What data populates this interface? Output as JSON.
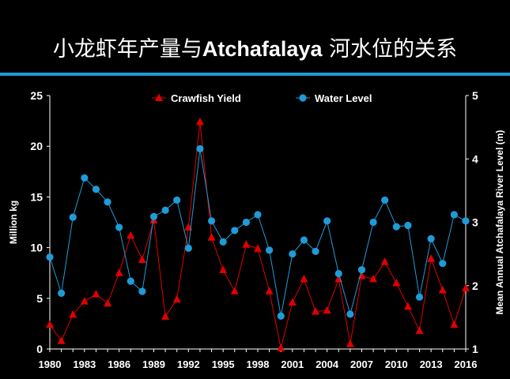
{
  "slide": {
    "title_cn_1": "小龙虾年产量与",
    "title_en": "Atchafalaya",
    "title_cn_2": " 河水位的关系"
  },
  "colors": {
    "background": "#000000",
    "accent_rule": "#1f9bd7",
    "crawfish": "#e00000",
    "water": "#1f9bd7"
  },
  "chart_data": {
    "type": "line",
    "x": [
      1980,
      1981,
      1982,
      1983,
      1984,
      1985,
      1986,
      1987,
      1988,
      1989,
      1990,
      1991,
      1992,
      1993,
      1994,
      1995,
      1996,
      1997,
      1998,
      1999,
      2000,
      2001,
      2002,
      2003,
      2004,
      2005,
      2006,
      2007,
      2008,
      2009,
      2010,
      2011,
      2012,
      2013,
      2014,
      2015,
      2016
    ],
    "x_ticks": [
      "1980",
      "1983",
      "1986",
      "1989",
      "1992",
      "1995",
      "1998",
      "2001",
      "2004",
      "2007",
      "2010",
      "2013",
      "2016"
    ],
    "xlim": [
      1980,
      2016
    ],
    "ylabel": "Million kg",
    "ylim": [
      0,
      25
    ],
    "y_ticks": [
      "0",
      "5",
      "10",
      "15",
      "20",
      "25"
    ],
    "y2label": "Mean Annual Atchafalaya River Level (m)",
    "y2lim": [
      1,
      5
    ],
    "y2_ticks": [
      "1",
      "2",
      "3",
      "4",
      "5"
    ],
    "legend_position": "top",
    "series": [
      {
        "name": "Crawfish Yield",
        "axis": "left",
        "marker": "triangle",
        "color": "#e00000",
        "values": [
          2.4,
          0.8,
          3.4,
          4.7,
          5.4,
          4.5,
          7.5,
          11.2,
          8.8,
          12.7,
          3.2,
          4.9,
          12.0,
          22.4,
          11.0,
          7.8,
          5.7,
          10.3,
          9.9,
          5.7,
          0.1,
          4.6,
          6.9,
          3.7,
          3.8,
          6.9,
          0.5,
          7.2,
          6.9,
          8.6,
          6.5,
          4.2,
          1.8,
          8.9,
          5.8,
          2.4,
          6.0
        ]
      },
      {
        "name": "Water Level",
        "axis": "right",
        "marker": "circle",
        "color": "#1f9bd7",
        "values": [
          2.45,
          1.88,
          3.08,
          3.7,
          3.52,
          3.32,
          2.92,
          2.07,
          1.91,
          3.09,
          3.19,
          3.35,
          2.59,
          4.16,
          3.02,
          2.69,
          2.87,
          3.0,
          3.12,
          2.56,
          1.52,
          2.5,
          2.72,
          2.54,
          3.02,
          2.19,
          1.55,
          2.25,
          3.0,
          3.35,
          2.93,
          2.95,
          1.82,
          2.74,
          2.35,
          3.12,
          3.02
        ]
      }
    ]
  }
}
